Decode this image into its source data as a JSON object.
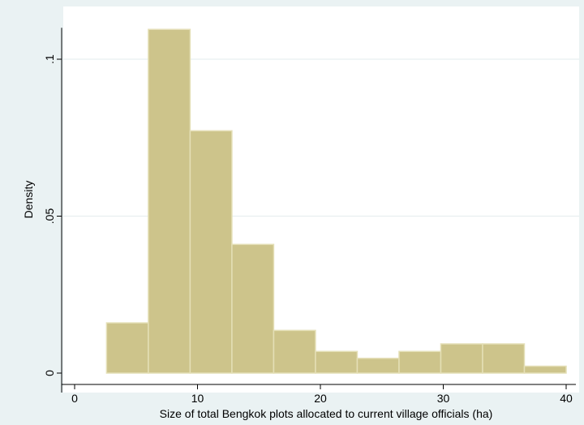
{
  "chart_data": {
    "type": "bar",
    "subtype": "histogram",
    "xlabel": "Size of total Bengkok plots allocated to current village officials (ha)",
    "ylabel": "Density",
    "xlim": [
      -1,
      40
    ],
    "ylim": [
      0,
      0.11
    ],
    "x_ticks": [
      {
        "value": 0,
        "label": "0"
      },
      {
        "value": 10,
        "label": "10"
      },
      {
        "value": 20,
        "label": "20"
      },
      {
        "value": 30,
        "label": "30"
      },
      {
        "value": 40,
        "label": "40"
      }
    ],
    "y_ticks": [
      {
        "value": 0,
        "label": "0"
      },
      {
        "value": 0.05,
        "label": ".05"
      },
      {
        "value": 0.1,
        "label": ".1"
      }
    ],
    "grid": true,
    "bins": [
      {
        "x0": 2.6,
        "x1": 6.0,
        "density": 0.016
      },
      {
        "x0": 6.0,
        "x1": 9.4,
        "density": 0.1095
      },
      {
        "x0": 9.4,
        "x1": 12.8,
        "density": 0.0772
      },
      {
        "x0": 12.8,
        "x1": 16.2,
        "density": 0.041
      },
      {
        "x0": 16.2,
        "x1": 19.6,
        "density": 0.0136
      },
      {
        "x0": 19.6,
        "x1": 23.0,
        "density": 0.0069
      },
      {
        "x0": 23.0,
        "x1": 26.4,
        "density": 0.0047
      },
      {
        "x0": 26.4,
        "x1": 29.8,
        "density": 0.0069
      },
      {
        "x0": 29.8,
        "x1": 33.2,
        "density": 0.0093
      },
      {
        "x0": 33.2,
        "x1": 36.6,
        "density": 0.0093
      },
      {
        "x0": 36.6,
        "x1": 40.0,
        "density": 0.0022
      }
    ],
    "colors": {
      "background": "#eaf2f3",
      "plot_background": "#ffffff",
      "bar_fill": "#cdc48b",
      "bar_stroke": "#e4dfb6",
      "grid": "#e8eff0",
      "axis": "#000000"
    }
  }
}
